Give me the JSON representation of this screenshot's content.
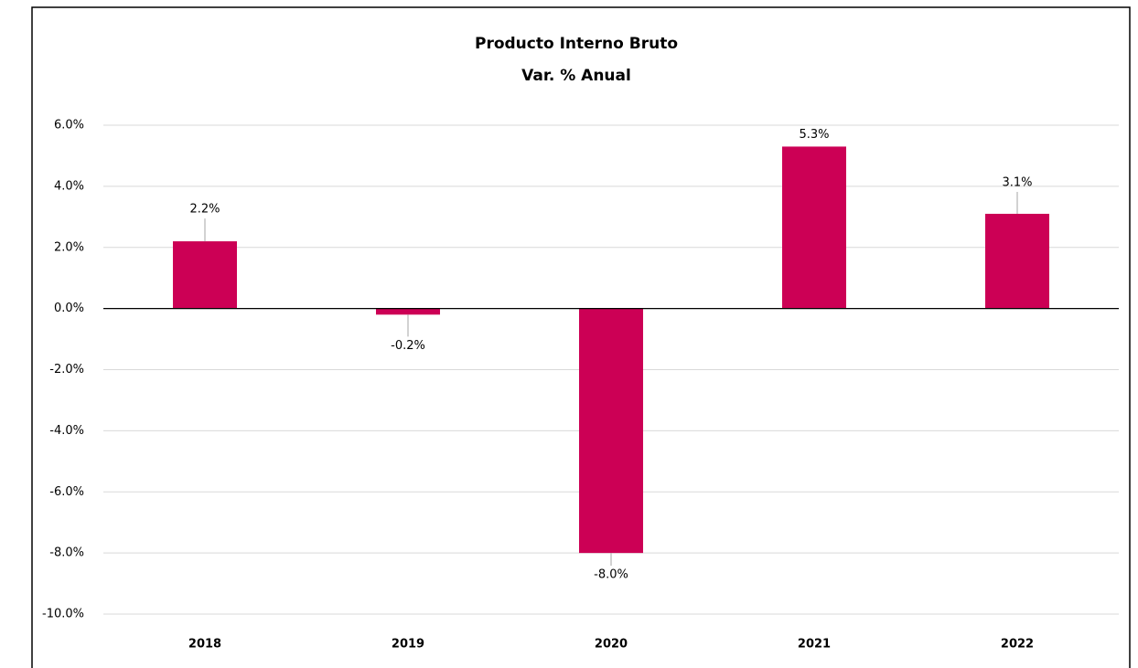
{
  "chart_data": {
    "type": "bar",
    "title": "Producto Interno Bruto",
    "subtitle": "Var. % Anual",
    "categories": [
      "2018",
      "2019",
      "2020",
      "2021",
      "2022"
    ],
    "values": [
      2.2,
      -0.2,
      -8.0,
      5.3,
      3.1
    ],
    "value_labels": [
      "2.2%",
      "-0.2%",
      "-8.0%",
      "5.3%",
      "3.1%"
    ],
    "color": "#cc0055",
    "ylim": [
      -10,
      6
    ],
    "yticks": [
      {
        "value": -10,
        "label": "-10.0%"
      },
      {
        "value": -8,
        "label": "-8.0%"
      },
      {
        "value": -6,
        "label": "-6.0%"
      },
      {
        "value": -4,
        "label": "-4.0%"
      },
      {
        "value": -2,
        "label": "-2.0%"
      },
      {
        "value": 0,
        "label": "0.0%"
      },
      {
        "value": 2,
        "label": "2.0%"
      },
      {
        "value": 4,
        "label": "4.0%"
      },
      {
        "value": 6,
        "label": "6.0%"
      }
    ],
    "grid": true
  }
}
